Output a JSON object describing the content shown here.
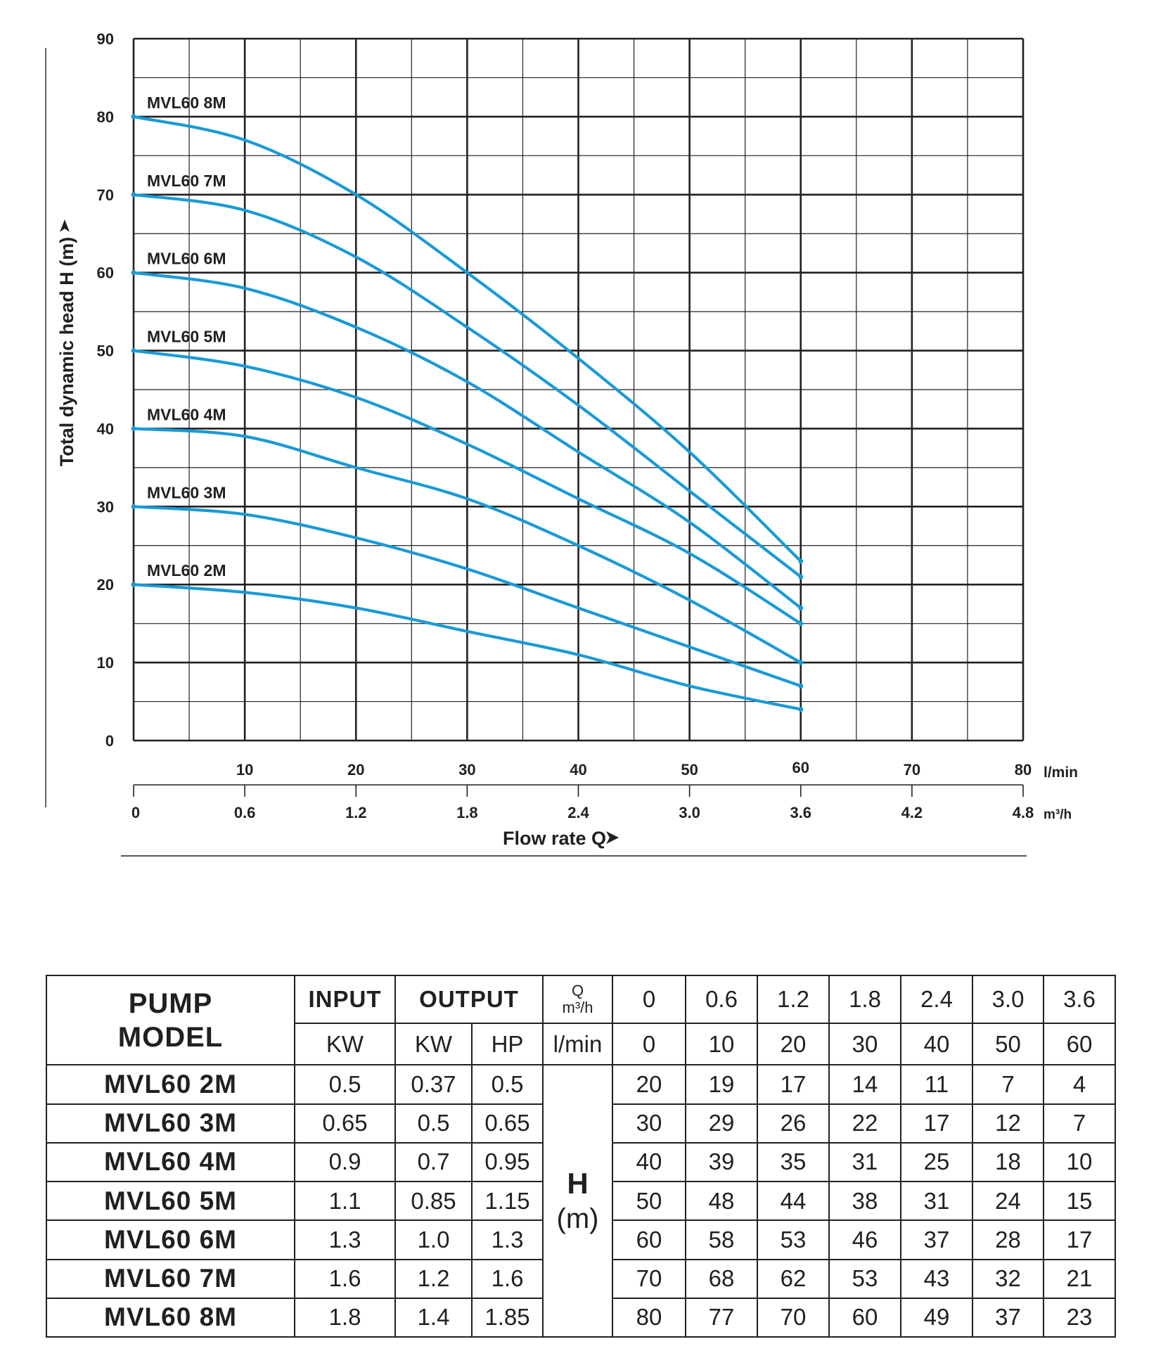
{
  "chart_data": {
    "type": "line",
    "title": "",
    "xlabel": "Flow rate Q",
    "ylabel": "Total dynamic head H (m)",
    "x_unit": "l/min",
    "x_unit_secondary": "m³/h",
    "xlim": [
      0,
      80
    ],
    "ylim": [
      0,
      90
    ],
    "x_ticks": [
      "10",
      "20",
      "30",
      "40",
      "50",
      "60",
      "70",
      "80"
    ],
    "x_ticks_secondary": [
      "0",
      "0.6",
      "1.2",
      "1.8",
      "2.4",
      "3.0",
      "3.6",
      "4.2",
      "4.8"
    ],
    "y_ticks": [
      "0",
      "10",
      "20",
      "30",
      "40",
      "50",
      "60",
      "70",
      "80",
      "90"
    ],
    "grid": true,
    "x": [
      0,
      10,
      20,
      30,
      40,
      50,
      60
    ],
    "series": [
      {
        "name": "MVL60 2M",
        "values": [
          20,
          19,
          17,
          14,
          11,
          7,
          4
        ]
      },
      {
        "name": "MVL60 3M",
        "values": [
          30,
          29,
          26,
          22,
          17,
          12,
          7
        ]
      },
      {
        "name": "MVL60 4M",
        "values": [
          40,
          39,
          35,
          31,
          25,
          18,
          10
        ]
      },
      {
        "name": "MVL60 5M",
        "values": [
          50,
          48,
          44,
          38,
          31,
          24,
          15
        ]
      },
      {
        "name": "MVL60 6M",
        "values": [
          60,
          58,
          53,
          46,
          37,
          28,
          17
        ]
      },
      {
        "name": "MVL60 7M",
        "values": [
          70,
          68,
          62,
          53,
          43,
          32,
          21
        ]
      },
      {
        "name": "MVL60 8M",
        "values": [
          80,
          77,
          70,
          60,
          49,
          37,
          23
        ]
      }
    ],
    "colors": {
      "curve": "#1a9ad6",
      "grid": "#231f20",
      "text": "#231f20"
    }
  },
  "table": {
    "pump_model": [
      "PUMP",
      "MODEL"
    ],
    "input_header": "INPUT",
    "output_header": "OUTPUT",
    "q_label": "Q",
    "q_unit_m3h": "m³/h",
    "q_unit_lmin": "l/min",
    "input_unit": "KW",
    "output_units": [
      "KW",
      "HP"
    ],
    "q_m3h": [
      "0",
      "0.6",
      "1.2",
      "1.8",
      "2.4",
      "3.0",
      "3.6"
    ],
    "q_lmin": [
      "0",
      "10",
      "20",
      "30",
      "40",
      "50",
      "60"
    ],
    "h_label": "H",
    "h_unit": "(m)",
    "rows": [
      {
        "model": "MVL60 2M",
        "in_kw": "0.5",
        "out_kw": "0.37",
        "out_hp": "0.5",
        "h": [
          "20",
          "19",
          "17",
          "14",
          "11",
          "7",
          "4"
        ]
      },
      {
        "model": "MVL60 3M",
        "in_kw": "0.65",
        "out_kw": "0.5",
        "out_hp": "0.65",
        "h": [
          "30",
          "29",
          "26",
          "22",
          "17",
          "12",
          "7"
        ]
      },
      {
        "model": "MVL60 4M",
        "in_kw": "0.9",
        "out_kw": "0.7",
        "out_hp": "0.95",
        "h": [
          "40",
          "39",
          "35",
          "31",
          "25",
          "18",
          "10"
        ]
      },
      {
        "model": "MVL60 5M",
        "in_kw": "1.1",
        "out_kw": "0.85",
        "out_hp": "1.15",
        "h": [
          "50",
          "48",
          "44",
          "38",
          "31",
          "24",
          "15"
        ]
      },
      {
        "model": "MVL60 6M",
        "in_kw": "1.3",
        "out_kw": "1.0",
        "out_hp": "1.3",
        "h": [
          "60",
          "58",
          "53",
          "46",
          "37",
          "28",
          "17"
        ]
      },
      {
        "model": "MVL60 7M",
        "in_kw": "1.6",
        "out_kw": "1.2",
        "out_hp": "1.6",
        "h": [
          "70",
          "68",
          "62",
          "53",
          "43",
          "32",
          "21"
        ]
      },
      {
        "model": "MVL60 8M",
        "in_kw": "1.8",
        "out_kw": "1.4",
        "out_hp": "1.85",
        "h": [
          "80",
          "77",
          "70",
          "60",
          "49",
          "37",
          "23"
        ]
      }
    ]
  }
}
